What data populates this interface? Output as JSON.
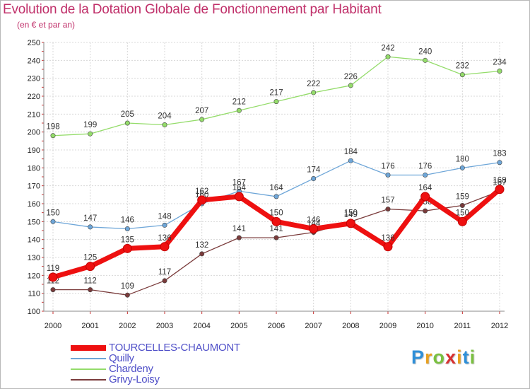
{
  "chart_data": {
    "type": "line",
    "title": "Evolution de la Dotation Globale de Fonctionnement par Habitant",
    "subtitle": "(en € et par an)",
    "xlabel": "",
    "ylabel": "",
    "x": [
      "2000",
      "2001",
      "2002",
      "2003",
      "2004",
      "2005",
      "2006",
      "2007",
      "2008",
      "2009",
      "2010",
      "2011",
      "2012"
    ],
    "ylim": [
      100,
      250
    ],
    "yticks": [
      100,
      110,
      120,
      130,
      140,
      150,
      160,
      170,
      180,
      190,
      200,
      210,
      220,
      230,
      240,
      250
    ],
    "grid": true,
    "legend_position": "bottom-left",
    "series": [
      {
        "name": "Chardeny",
        "color": "#94dc6a",
        "values": [
          198,
          199,
          205,
          204,
          207,
          212,
          217,
          222,
          226,
          242,
          240,
          232,
          234
        ]
      },
      {
        "name": "Quilly",
        "color": "#6ea6d8",
        "values": [
          150,
          147,
          146,
          148,
          160,
          167,
          164,
          174,
          184,
          176,
          176,
          180,
          183
        ]
      },
      {
        "name": "Grivy-Loisy",
        "color": "#7a3b3b",
        "values": [
          112,
          112,
          109,
          117,
          132,
          141,
          141,
          144,
          150,
          157,
          156,
          159,
          167
        ]
      },
      {
        "name": "TOURCELLES-CHAUMONT",
        "color": "#ee1010",
        "values": [
          119,
          125,
          135,
          136,
          162,
          164,
          150,
          146,
          149,
          136,
          164,
          150,
          168
        ]
      }
    ],
    "legend_order": [
      "TOURCELLES-CHAUMONT",
      "Quilly",
      "Chardeny",
      "Grivy-Loisy"
    ]
  },
  "logo": {
    "letters": [
      "P",
      "r",
      "o",
      "x",
      "i",
      "t",
      "i"
    ],
    "colors": [
      "#2e8fd8",
      "#e8a020",
      "#7ac040",
      "#d83030",
      "#e8a020",
      "#2e8fd8",
      "#7ac040"
    ]
  }
}
